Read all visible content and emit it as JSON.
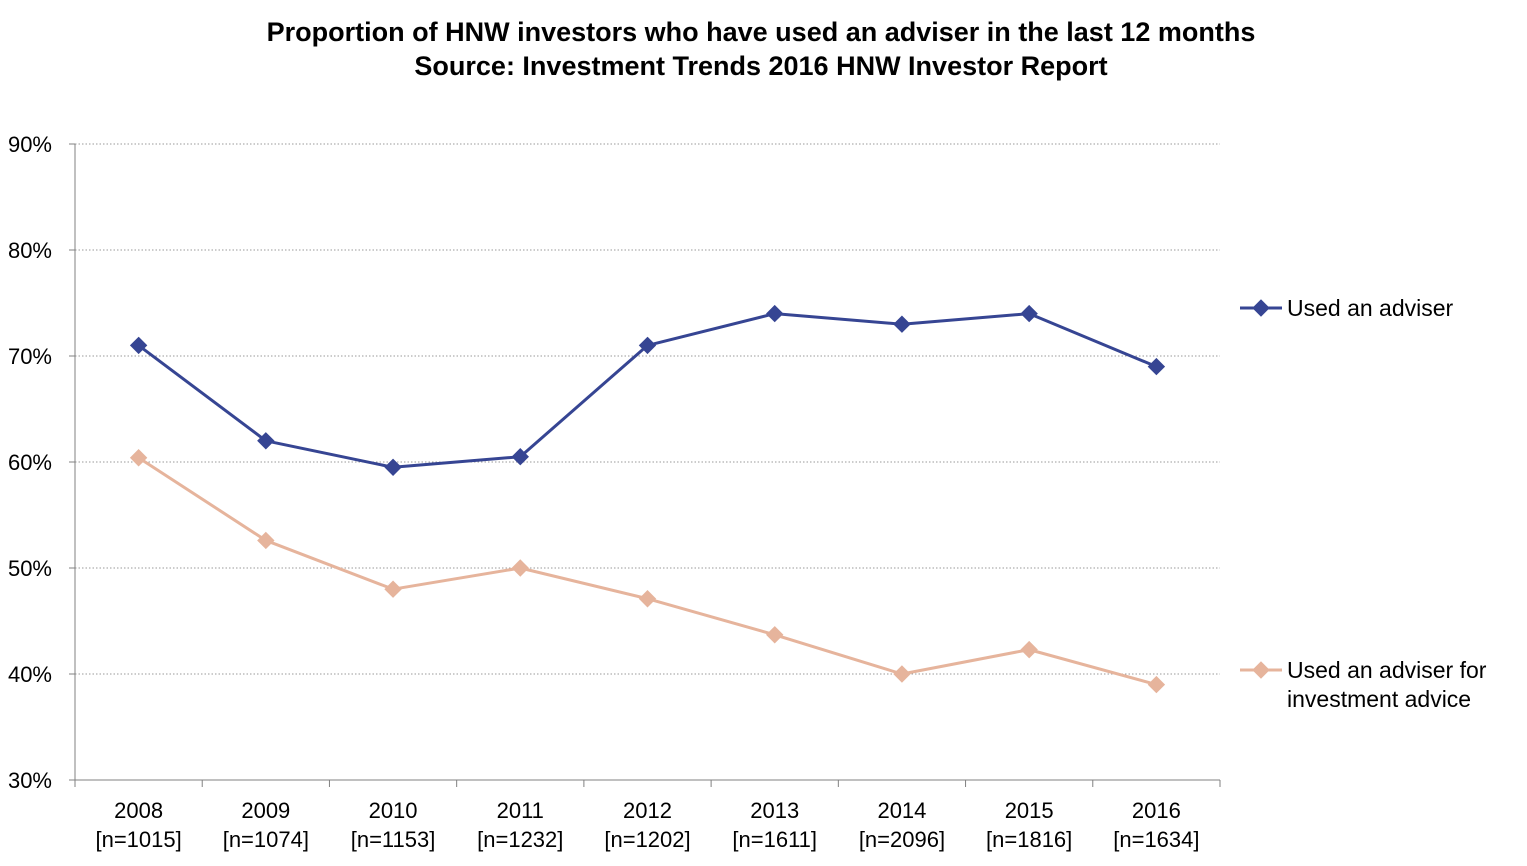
{
  "chart_data": {
    "type": "line",
    "title": "Proportion of HNW investors who have used an adviser in the last 12 months",
    "subtitle": "Source: Investment Trends 2016 HNW Investor Report",
    "categories": [
      "2008",
      "2009",
      "2010",
      "2011",
      "2012",
      "2013",
      "2014",
      "2015",
      "2016"
    ],
    "category_sublabels": [
      "[n=1015]",
      "[n=1074]",
      "[n=1153]",
      "[n=1232]",
      "[n=1202]",
      "[n=1611]",
      "[n=2096]",
      "[n=1816]",
      "[n=1634]"
    ],
    "ylim": [
      30,
      90
    ],
    "yticks": [
      30,
      40,
      50,
      60,
      70,
      80,
      90
    ],
    "ytick_format": "%",
    "grid": true,
    "legend_position": "right",
    "series": [
      {
        "name": "Used an adviser",
        "color": "#364593",
        "marker": "diamond",
        "values": [
          71,
          62,
          59.5,
          60.5,
          71,
          74,
          73,
          74,
          69
        ]
      },
      {
        "name": "Used an adviser for investment advice",
        "legend_lines": [
          "Used an adviser for",
          "investment advice"
        ],
        "color": "#e6b49c",
        "marker": "diamond",
        "values": [
          60.4,
          52.6,
          48,
          50,
          47.1,
          43.7,
          40,
          42.3,
          39
        ]
      }
    ]
  }
}
